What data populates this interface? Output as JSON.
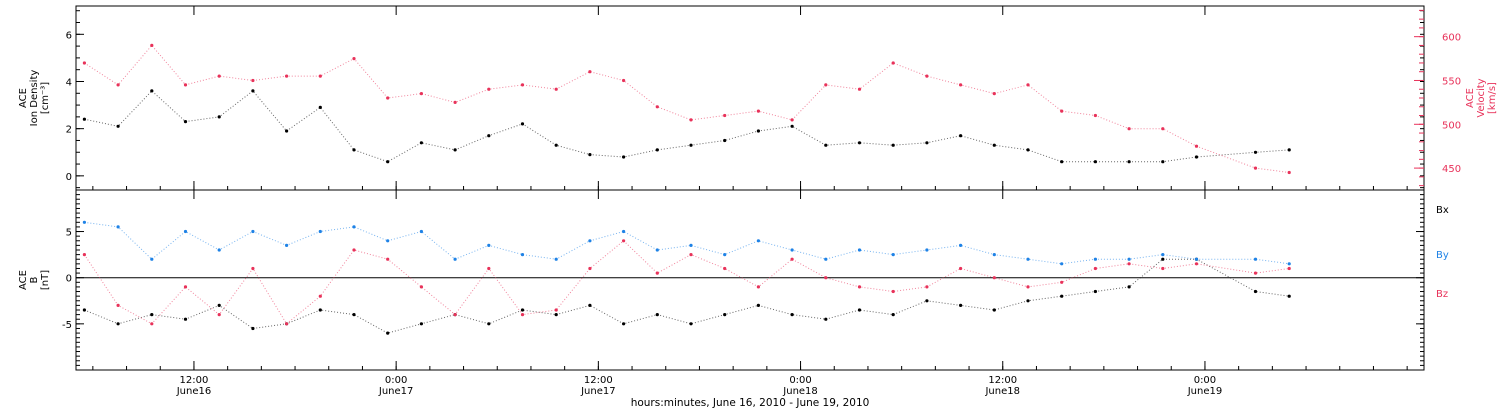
{
  "colors": {
    "black": "#000000",
    "red": "#e8325a",
    "blue": "#1e82e6"
  },
  "xlabel": "hours:minutes, June 16, 2010 - June 19, 2010",
  "x_ticks": [
    {
      "value": 12,
      "time": "12:00",
      "day": "June16"
    },
    {
      "value": 24,
      "time": "0:00",
      "day": "June17"
    },
    {
      "value": 36,
      "time": "12:00",
      "day": "June17"
    },
    {
      "value": 48,
      "time": "0:00",
      "day": "June18"
    },
    {
      "value": 60,
      "time": "12:00",
      "day": "June18"
    },
    {
      "value": 72,
      "time": "0:00",
      "day": "June19"
    }
  ],
  "chart_data": [
    {
      "type": "scatter",
      "title": "",
      "xlim": [
        5,
        85
      ],
      "ylabel": [
        "ACE",
        "Ion Density",
        "[cm⁻³]"
      ],
      "ylim": [
        -0.6,
        7.2
      ],
      "yticks": [
        0,
        2,
        4,
        6
      ],
      "y2label": [
        "ACE",
        "Velocity",
        "[km/s]"
      ],
      "y2lim": [
        425,
        635
      ],
      "y2ticks": [
        450,
        500,
        550,
        600
      ],
      "grid": false,
      "series": [
        {
          "name": "",
          "axis": "left",
          "color": "black",
          "points": [
            [
              5.5,
              2.4
            ],
            [
              7.5,
              2.1
            ],
            [
              9.5,
              3.6
            ],
            [
              11.5,
              2.3
            ],
            [
              13.5,
              2.5
            ],
            [
              15.5,
              3.6
            ],
            [
              17.5,
              1.9
            ],
            [
              19.5,
              2.9
            ],
            [
              21.5,
              1.1
            ],
            [
              23.5,
              0.6
            ],
            [
              25.5,
              1.4
            ],
            [
              27.5,
              1.1
            ],
            [
              29.5,
              1.7
            ],
            [
              31.5,
              2.2
            ],
            [
              33.5,
              1.3
            ],
            [
              35.5,
              0.9
            ],
            [
              37.5,
              0.8
            ],
            [
              39.5,
              1.1
            ],
            [
              41.5,
              1.3
            ],
            [
              43.5,
              1.5
            ],
            [
              45.5,
              1.9
            ],
            [
              47.5,
              2.1
            ],
            [
              49.5,
              1.3
            ],
            [
              51.5,
              1.4
            ],
            [
              53.5,
              1.3
            ],
            [
              55.5,
              1.4
            ],
            [
              57.5,
              1.7
            ],
            [
              59.5,
              1.3
            ],
            [
              61.5,
              1.1
            ],
            [
              63.5,
              0.6
            ],
            [
              65.5,
              0.6
            ],
            [
              67.5,
              0.6
            ],
            [
              69.5,
              0.6
            ],
            [
              71.5,
              0.8
            ],
            [
              75.0,
              1.0
            ],
            [
              77.0,
              1.1
            ]
          ]
        },
        {
          "name": "",
          "axis": "right",
          "color": "red",
          "points": [
            [
              5.5,
              570
            ],
            [
              7.5,
              545
            ],
            [
              9.5,
              590
            ],
            [
              11.5,
              545
            ],
            [
              13.5,
              555
            ],
            [
              15.5,
              550
            ],
            [
              17.5,
              555
            ],
            [
              19.5,
              555
            ],
            [
              21.5,
              575
            ],
            [
              23.5,
              530
            ],
            [
              25.5,
              535
            ],
            [
              27.5,
              525
            ],
            [
              29.5,
              540
            ],
            [
              31.5,
              545
            ],
            [
              33.5,
              540
            ],
            [
              35.5,
              560
            ],
            [
              37.5,
              550
            ],
            [
              39.5,
              520
            ],
            [
              41.5,
              505
            ],
            [
              43.5,
              510
            ],
            [
              45.5,
              515
            ],
            [
              47.5,
              505
            ],
            [
              49.5,
              545
            ],
            [
              51.5,
              540
            ],
            [
              53.5,
              570
            ],
            [
              55.5,
              555
            ],
            [
              57.5,
              545
            ],
            [
              59.5,
              535
            ],
            [
              61.5,
              545
            ],
            [
              63.5,
              515
            ],
            [
              65.5,
              510
            ],
            [
              67.5,
              495
            ],
            [
              69.5,
              495
            ],
            [
              71.5,
              475
            ],
            [
              75.0,
              450
            ],
            [
              77.0,
              445
            ]
          ]
        }
      ]
    },
    {
      "type": "scatter",
      "title": "",
      "xlim": [
        5,
        85
      ],
      "ylabel": [
        "ACE",
        "B",
        "[nT]"
      ],
      "ylim": [
        -10,
        9.5
      ],
      "yticks": [
        -5,
        0,
        5
      ],
      "hline": 0,
      "grid": false,
      "legend": "right",
      "series": [
        {
          "name": "Bx",
          "color": "black",
          "points": [
            [
              5.5,
              -3.5
            ],
            [
              7.5,
              -5.0
            ],
            [
              9.5,
              -4.0
            ],
            [
              11.5,
              -4.5
            ],
            [
              13.5,
              -3.0
            ],
            [
              15.5,
              -5.5
            ],
            [
              17.5,
              -5.0
            ],
            [
              19.5,
              -3.5
            ],
            [
              21.5,
              -4.0
            ],
            [
              23.5,
              -6.0
            ],
            [
              25.5,
              -5.0
            ],
            [
              27.5,
              -4.0
            ],
            [
              29.5,
              -5.0
            ],
            [
              31.5,
              -3.5
            ],
            [
              33.5,
              -4.0
            ],
            [
              35.5,
              -3.0
            ],
            [
              37.5,
              -5.0
            ],
            [
              39.5,
              -4.0
            ],
            [
              41.5,
              -5.0
            ],
            [
              43.5,
              -4.0
            ],
            [
              45.5,
              -3.0
            ],
            [
              47.5,
              -4.0
            ],
            [
              49.5,
              -4.5
            ],
            [
              51.5,
              -3.5
            ],
            [
              53.5,
              -4.0
            ],
            [
              55.5,
              -2.5
            ],
            [
              57.5,
              -3.0
            ],
            [
              59.5,
              -3.5
            ],
            [
              61.5,
              -2.5
            ],
            [
              63.5,
              -2.0
            ],
            [
              65.5,
              -1.5
            ],
            [
              67.5,
              -1.0
            ],
            [
              69.5,
              2.0
            ],
            [
              71.5,
              2.0
            ],
            [
              75.0,
              -1.5
            ],
            [
              77.0,
              -2.0
            ]
          ]
        },
        {
          "name": "By",
          "color": "blue",
          "points": [
            [
              5.5,
              6.0
            ],
            [
              7.5,
              5.5
            ],
            [
              9.5,
              2.0
            ],
            [
              11.5,
              5.0
            ],
            [
              13.5,
              3.0
            ],
            [
              15.5,
              5.0
            ],
            [
              17.5,
              3.5
            ],
            [
              19.5,
              5.0
            ],
            [
              21.5,
              5.5
            ],
            [
              23.5,
              4.0
            ],
            [
              25.5,
              5.0
            ],
            [
              27.5,
              2.0
            ],
            [
              29.5,
              3.5
            ],
            [
              31.5,
              2.5
            ],
            [
              33.5,
              2.0
            ],
            [
              35.5,
              4.0
            ],
            [
              37.5,
              5.0
            ],
            [
              39.5,
              3.0
            ],
            [
              41.5,
              3.5
            ],
            [
              43.5,
              2.5
            ],
            [
              45.5,
              4.0
            ],
            [
              47.5,
              3.0
            ],
            [
              49.5,
              2.0
            ],
            [
              51.5,
              3.0
            ],
            [
              53.5,
              2.5
            ],
            [
              55.5,
              3.0
            ],
            [
              57.5,
              3.5
            ],
            [
              59.5,
              2.5
            ],
            [
              61.5,
              2.0
            ],
            [
              63.5,
              1.5
            ],
            [
              65.5,
              2.0
            ],
            [
              67.5,
              2.0
            ],
            [
              69.5,
              2.5
            ],
            [
              71.5,
              2.0
            ],
            [
              75.0,
              2.0
            ],
            [
              77.0,
              1.5
            ]
          ]
        },
        {
          "name": "Bz",
          "color": "red",
          "points": [
            [
              5.5,
              2.5
            ],
            [
              7.5,
              -3.0
            ],
            [
              9.5,
              -5.0
            ],
            [
              11.5,
              -1.0
            ],
            [
              13.5,
              -4.0
            ],
            [
              15.5,
              1.0
            ],
            [
              17.5,
              -5.0
            ],
            [
              19.5,
              -2.0
            ],
            [
              21.5,
              3.0
            ],
            [
              23.5,
              2.0
            ],
            [
              25.5,
              -1.0
            ],
            [
              27.5,
              -4.0
            ],
            [
              29.5,
              1.0
            ],
            [
              31.5,
              -4.0
            ],
            [
              33.5,
              -3.5
            ],
            [
              35.5,
              1.0
            ],
            [
              37.5,
              4.0
            ],
            [
              39.5,
              0.5
            ],
            [
              41.5,
              2.5
            ],
            [
              43.5,
              1.0
            ],
            [
              45.5,
              -1.0
            ],
            [
              47.5,
              2.0
            ],
            [
              49.5,
              0.0
            ],
            [
              51.5,
              -1.0
            ],
            [
              53.5,
              -1.5
            ],
            [
              55.5,
              -1.0
            ],
            [
              57.5,
              1.0
            ],
            [
              59.5,
              0.0
            ],
            [
              61.5,
              -1.0
            ],
            [
              63.5,
              -0.5
            ],
            [
              65.5,
              1.0
            ],
            [
              67.5,
              1.5
            ],
            [
              69.5,
              1.0
            ],
            [
              71.5,
              1.5
            ],
            [
              75.0,
              0.5
            ],
            [
              77.0,
              1.0
            ]
          ]
        }
      ]
    }
  ]
}
